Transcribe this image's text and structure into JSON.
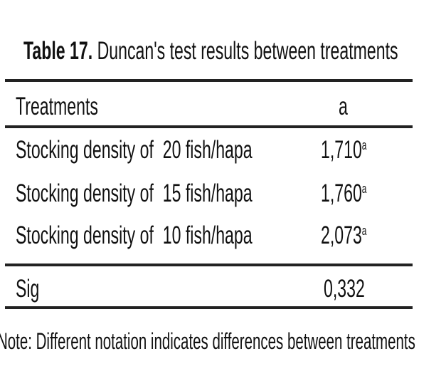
{
  "caption": {
    "label": "Table 17.",
    "text": " Duncan's test results between treatments"
  },
  "table": {
    "headers": [
      "Treatments",
      "a"
    ],
    "rows": [
      {
        "treatment": "Stocking density of  20 fish/hapa",
        "value": "1,710",
        "notation": "a"
      },
      {
        "treatment": "Stocking density of  15 fish/hapa",
        "value": "1,760",
        "notation": "a"
      },
      {
        "treatment": "Stocking density of  10 fish/hapa",
        "value": "2,073",
        "notation": "a"
      }
    ],
    "sig": {
      "label": "Sig",
      "value": "0,332"
    }
  },
  "note": "Note: Different notation indicates differences between treatments"
}
